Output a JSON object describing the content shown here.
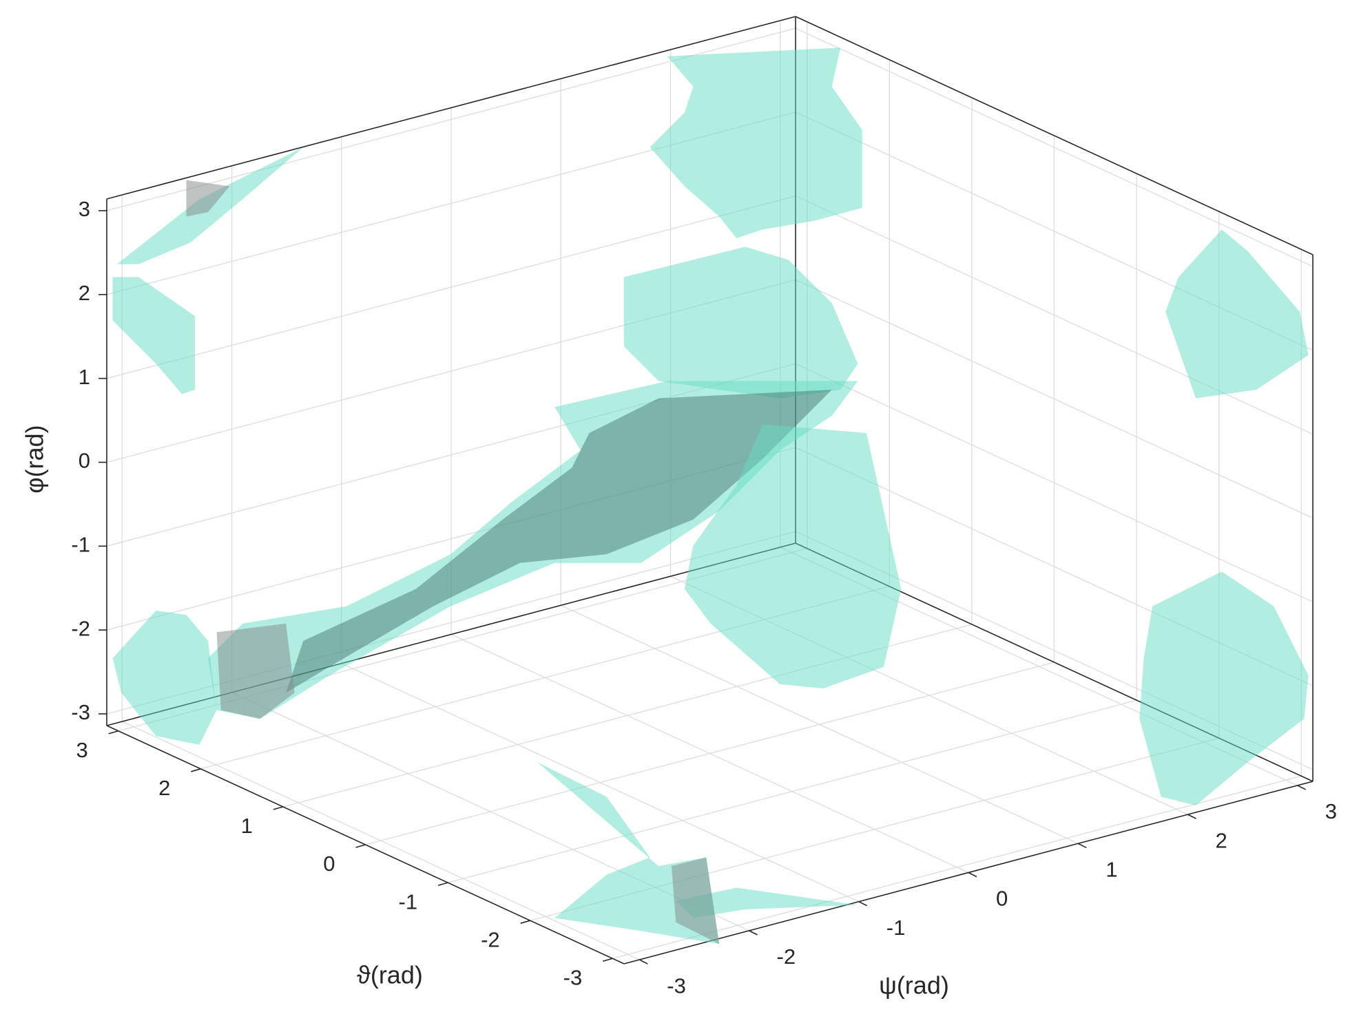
{
  "chart_data": {
    "type": "isosurface3d",
    "xlabel": "ϑ(rad)",
    "ylabel": "ψ(rad)",
    "zlabel": "φ(rad)",
    "xlim": [
      -3.14,
      3.14
    ],
    "ylim": [
      -3.14,
      3.14
    ],
    "zlim": [
      -3.14,
      3.14
    ],
    "xticks": [
      -3,
      -2,
      -1,
      0,
      1,
      2,
      3
    ],
    "yticks": [
      -3,
      -2,
      -1,
      0,
      1,
      2,
      3
    ],
    "zticks": [
      -3,
      -2,
      -1,
      0,
      1,
      2,
      3
    ],
    "grid": true,
    "color": "#66dcc4"
  }
}
